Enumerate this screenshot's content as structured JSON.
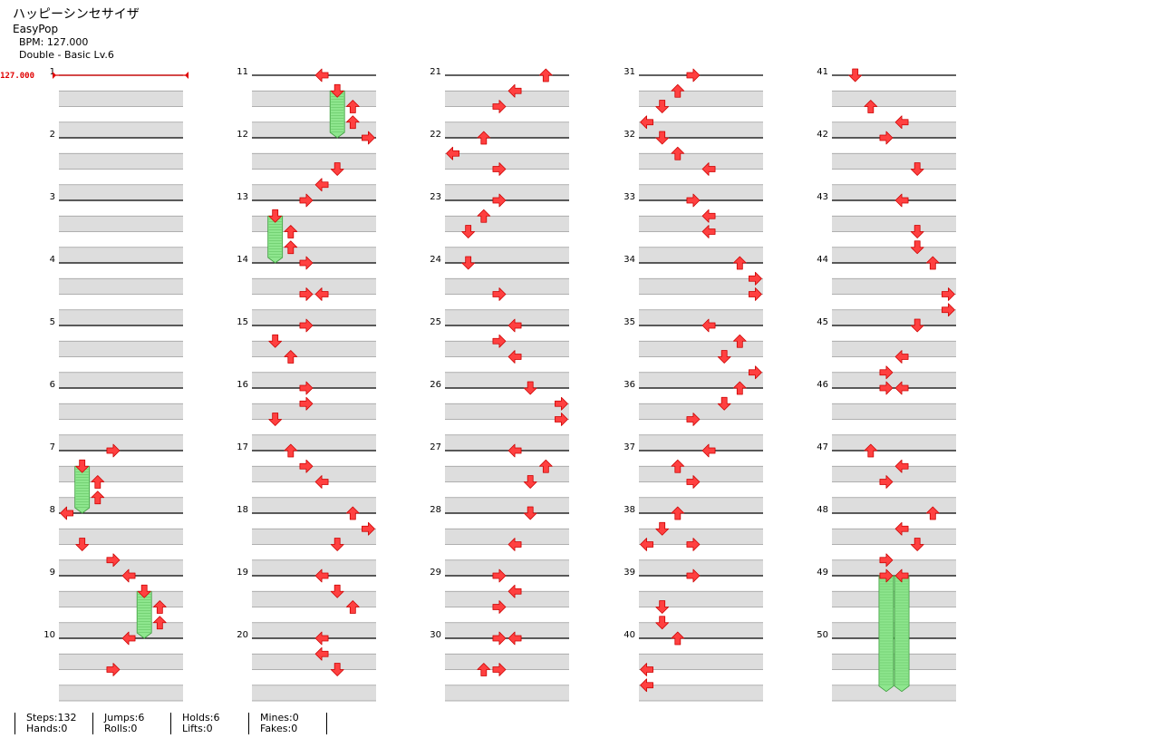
{
  "title": "ハッピーシンセサイザ",
  "style": "EasyPop",
  "bpm_text": "BPM: 127.000",
  "difficulty_text": "Double - Basic  Lv.6",
  "bpm_marker": "127.000",
  "colors": {
    "arrow_fill": "#ff4040",
    "arrow_stroke": "#cc0000",
    "hold_fill": "#8ee68e",
    "hold_stroke": "#3c9c3c",
    "bpm_line": "#e00000",
    "band": "#dddddd"
  },
  "stats": [
    {
      "a": "Steps:132",
      "b": "Hands:0"
    },
    {
      "a": "Jumps:6",
      "b": "Rolls:0"
    },
    {
      "a": "Holds:6",
      "b": "Lifts:0"
    },
    {
      "a": "Mines:0",
      "b": "Fakes:0"
    }
  ],
  "chart_data": {
    "type": "table",
    "lanes": 8,
    "columns": [
      {
        "measures": [
          "1",
          "2",
          "3",
          "4",
          "5",
          "6",
          "7",
          "8",
          "9",
          "10"
        ]
      },
      {
        "measures": [
          "11",
          "12",
          "13",
          "14",
          "15",
          "16",
          "17",
          "18",
          "19",
          "20"
        ]
      },
      {
        "measures": [
          "21",
          "22",
          "23",
          "24",
          "25",
          "26",
          "27",
          "28",
          "29",
          "30"
        ]
      },
      {
        "measures": [
          "31",
          "32",
          "33",
          "34",
          "35",
          "36",
          "37",
          "38",
          "39",
          "40"
        ]
      },
      {
        "measures": [
          "41",
          "42",
          "43",
          "44",
          "45",
          "46",
          "47",
          "48",
          "49",
          "50"
        ]
      }
    ],
    "notes": [
      [
        [
          6.0,
          3,
          "R"
        ],
        [
          6.25,
          1,
          "D"
        ],
        [
          6.25,
          1,
          "H",
          0.75
        ],
        [
          6.5,
          2,
          "U"
        ],
        [
          6.75,
          2,
          "U"
        ],
        [
          7.0,
          0,
          "L"
        ],
        [
          7.5,
          1,
          "D"
        ],
        [
          7.75,
          3,
          "R"
        ],
        [
          8.0,
          4,
          "L"
        ],
        [
          8.25,
          5,
          "D"
        ],
        [
          8.25,
          5,
          "H",
          0.75
        ],
        [
          8.5,
          6,
          "U"
        ],
        [
          8.75,
          6,
          "U"
        ],
        [
          9.0,
          4,
          "L"
        ],
        [
          9.5,
          3,
          "R"
        ]
      ],
      [
        [
          0.0,
          4,
          "L"
        ],
        [
          0.25,
          5,
          "D"
        ],
        [
          0.25,
          5,
          "H",
          0.75
        ],
        [
          0.5,
          6,
          "U"
        ],
        [
          0.75,
          6,
          "U"
        ],
        [
          1.0,
          7,
          "R"
        ],
        [
          1.5,
          5,
          "D"
        ],
        [
          1.75,
          4,
          "L"
        ],
        [
          2.0,
          3,
          "R"
        ],
        [
          2.25,
          1,
          "D"
        ],
        [
          2.25,
          1,
          "H",
          0.75
        ],
        [
          2.5,
          2,
          "U"
        ],
        [
          2.75,
          2,
          "U"
        ],
        [
          3.0,
          3,
          "R"
        ],
        [
          3.5,
          3,
          "R"
        ],
        [
          3.5,
          4,
          "L"
        ],
        [
          4.0,
          3,
          "R"
        ],
        [
          4.25,
          1,
          "D"
        ],
        [
          4.5,
          2,
          "U"
        ],
        [
          5.0,
          3,
          "R"
        ],
        [
          5.25,
          3,
          "R"
        ],
        [
          5.5,
          1,
          "D"
        ],
        [
          6.0,
          2,
          "U"
        ],
        [
          6.25,
          3,
          "R"
        ],
        [
          6.5,
          4,
          "L"
        ],
        [
          7.0,
          6,
          "U"
        ],
        [
          7.25,
          7,
          "R"
        ],
        [
          7.5,
          5,
          "D"
        ],
        [
          8.0,
          4,
          "L"
        ],
        [
          8.25,
          5,
          "D"
        ],
        [
          8.5,
          6,
          "U"
        ],
        [
          9.0,
          4,
          "L"
        ],
        [
          9.25,
          4,
          "L"
        ],
        [
          9.5,
          5,
          "D"
        ]
      ],
      [
        [
          0.0,
          6,
          "U"
        ],
        [
          0.25,
          4,
          "L"
        ],
        [
          0.5,
          3,
          "R"
        ],
        [
          1.0,
          2,
          "U"
        ],
        [
          1.25,
          0,
          "L"
        ],
        [
          1.5,
          3,
          "R"
        ],
        [
          2.0,
          3,
          "R"
        ],
        [
          2.25,
          2,
          "U"
        ],
        [
          2.5,
          1,
          "D"
        ],
        [
          3.0,
          1,
          "D"
        ],
        [
          3.5,
          3,
          "R"
        ],
        [
          4.0,
          4,
          "L"
        ],
        [
          4.25,
          3,
          "R"
        ],
        [
          4.5,
          4,
          "L"
        ],
        [
          5.0,
          5,
          "D"
        ],
        [
          5.25,
          7,
          "R"
        ],
        [
          5.5,
          7,
          "R"
        ],
        [
          6.0,
          4,
          "L"
        ],
        [
          6.25,
          6,
          "U"
        ],
        [
          6.5,
          5,
          "D"
        ],
        [
          7.0,
          5,
          "D"
        ],
        [
          7.5,
          4,
          "L"
        ],
        [
          8.0,
          3,
          "R"
        ],
        [
          8.25,
          4,
          "L"
        ],
        [
          8.5,
          3,
          "R"
        ],
        [
          9.0,
          3,
          "R"
        ],
        [
          9.0,
          4,
          "L"
        ],
        [
          9.5,
          2,
          "U"
        ],
        [
          9.5,
          3,
          "R"
        ]
      ],
      [
        [
          0.0,
          3,
          "R"
        ],
        [
          0.25,
          2,
          "U"
        ],
        [
          0.5,
          1,
          "D"
        ],
        [
          0.75,
          0,
          "L"
        ],
        [
          1.0,
          1,
          "D"
        ],
        [
          1.25,
          2,
          "U"
        ],
        [
          1.5,
          4,
          "L"
        ],
        [
          2.0,
          3,
          "R"
        ],
        [
          2.25,
          4,
          "L"
        ],
        [
          2.5,
          4,
          "L"
        ],
        [
          3.0,
          6,
          "U"
        ],
        [
          3.25,
          7,
          "R"
        ],
        [
          3.5,
          7,
          "R"
        ],
        [
          4.0,
          4,
          "L"
        ],
        [
          4.25,
          6,
          "U"
        ],
        [
          4.5,
          5,
          "D"
        ],
        [
          4.75,
          7,
          "R"
        ],
        [
          5.0,
          6,
          "U"
        ],
        [
          5.25,
          5,
          "D"
        ],
        [
          5.5,
          3,
          "R"
        ],
        [
          6.0,
          4,
          "L"
        ],
        [
          6.25,
          2,
          "U"
        ],
        [
          6.5,
          3,
          "R"
        ],
        [
          7.0,
          2,
          "U"
        ],
        [
          7.25,
          1,
          "D"
        ],
        [
          7.5,
          0,
          "L"
        ],
        [
          7.5,
          3,
          "R"
        ],
        [
          8.0,
          3,
          "R"
        ],
        [
          8.5,
          1,
          "D"
        ],
        [
          8.75,
          1,
          "D"
        ],
        [
          9.0,
          2,
          "U"
        ],
        [
          9.5,
          0,
          "L"
        ],
        [
          9.75,
          0,
          "L"
        ]
      ],
      [
        [
          0.0,
          1,
          "D"
        ],
        [
          0.5,
          2,
          "U"
        ],
        [
          0.75,
          4,
          "L"
        ],
        [
          1.0,
          3,
          "R"
        ],
        [
          1.5,
          5,
          "D"
        ],
        [
          2.0,
          4,
          "L"
        ],
        [
          2.5,
          5,
          "D"
        ],
        [
          2.75,
          5,
          "D"
        ],
        [
          3.0,
          6,
          "U"
        ],
        [
          3.5,
          7,
          "R"
        ],
        [
          3.75,
          7,
          "R"
        ],
        [
          4.0,
          5,
          "D"
        ],
        [
          4.5,
          4,
          "L"
        ],
        [
          4.75,
          3,
          "R"
        ],
        [
          5.0,
          3,
          "R"
        ],
        [
          5.0,
          4,
          "L"
        ],
        [
          6.0,
          2,
          "U"
        ],
        [
          6.25,
          4,
          "L"
        ],
        [
          6.5,
          3,
          "R"
        ],
        [
          7.0,
          6,
          "U"
        ],
        [
          7.25,
          4,
          "L"
        ],
        [
          7.5,
          5,
          "D"
        ],
        [
          7.75,
          3,
          "R"
        ],
        [
          8.0,
          3,
          "R"
        ],
        [
          8.0,
          4,
          "L"
        ],
        [
          8.0,
          3,
          "H",
          1.85
        ],
        [
          8.0,
          4,
          "H",
          1.85
        ]
      ]
    ]
  }
}
